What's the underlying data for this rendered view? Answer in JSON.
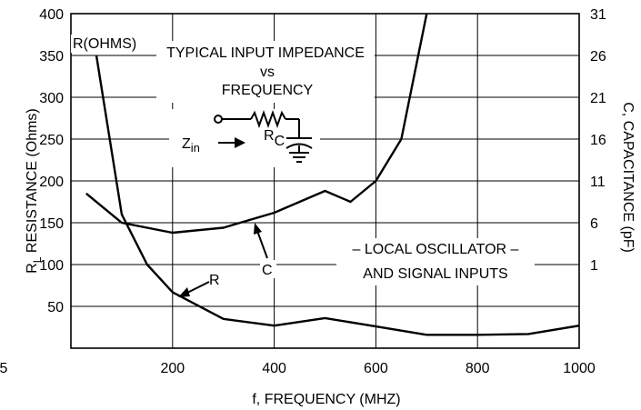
{
  "chart_data": {
    "type": "line",
    "title": "TYPICAL INPUT IMPEDANCE",
    "title_line2": "vs",
    "title_line3": "FREQUENCY",
    "xlabel": "f, FREQUENCY (MHZ)",
    "ylabel_main": "R",
    "ylabel_sub": "L",
    "ylabel_rest": "RESISTANCE (Ohms)",
    "y2label": "C, CAPACITANCE (pF)",
    "xlim": [
      0,
      1000
    ],
    "ylim": [
      0,
      400
    ],
    "x_ticks": [
      {
        "value": 0,
        "label": "5"
      },
      {
        "value": 200,
        "label": "200"
      },
      {
        "value": 400,
        "label": "400"
      },
      {
        "value": 600,
        "label": "600"
      },
      {
        "value": 800,
        "label": "800"
      },
      {
        "value": 1000,
        "label": "1000"
      }
    ],
    "y_ticks": [
      {
        "value": 50,
        "label": "50"
      },
      {
        "value": 100,
        "label": "100"
      },
      {
        "value": 150,
        "label": "150"
      },
      {
        "value": 200,
        "label": "200"
      },
      {
        "value": 250,
        "label": "250"
      },
      {
        "value": 300,
        "label": "300"
      },
      {
        "value": 350,
        "label": "350"
      },
      {
        "value": 400,
        "label": "400"
      }
    ],
    "y2_ticks": [
      {
        "value": 100,
        "label": "1"
      },
      {
        "value": 150,
        "label": "6"
      },
      {
        "value": 200,
        "label": "11"
      },
      {
        "value": 250,
        "label": "16"
      },
      {
        "value": 300,
        "label": "21"
      },
      {
        "value": 350,
        "label": "26"
      },
      {
        "value": 400,
        "label": "31"
      }
    ],
    "grid": true,
    "series": [
      {
        "name": "R",
        "x": [
          50,
          100,
          150,
          200,
          300,
          400,
          500,
          600,
          700,
          800,
          900,
          1000
        ],
        "y": [
          350,
          160,
          100,
          67,
          35,
          27,
          36,
          26,
          16,
          16,
          17,
          27
        ]
      },
      {
        "name": "C",
        "x": [
          30,
          100,
          200,
          300,
          400,
          500,
          550,
          600,
          650,
          700
        ],
        "y": [
          185,
          150,
          138,
          144,
          162,
          188,
          175,
          200,
          250,
          400
        ]
      }
    ],
    "annotations": {
      "r_ohms": "R(OHMS)",
      "r_label": "R",
      "c_label": "C",
      "note_line1": "– LOCAL OSCILLATOR –",
      "note_line2": "AND SIGNAL INPUTS",
      "zin_main": "Z",
      "zin_sub": "in",
      "rc_main": "R",
      "rc_sub": "C"
    }
  }
}
